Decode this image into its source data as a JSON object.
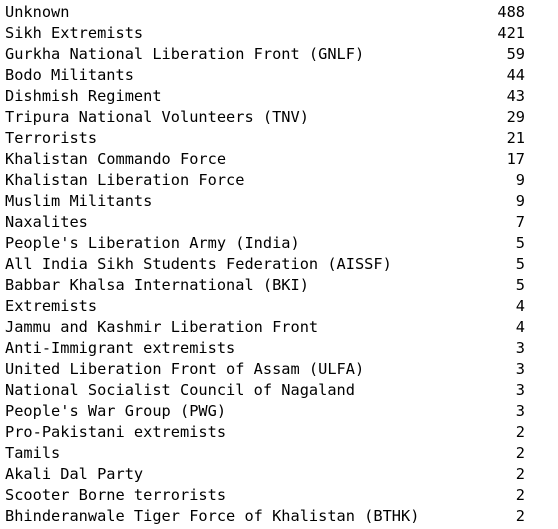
{
  "rows": [
    {
      "name": "Unknown",
      "count": "488"
    },
    {
      "name": "Sikh Extremists",
      "count": "421"
    },
    {
      "name": "Gurkha National Liberation Front (GNLF)",
      "count": "59"
    },
    {
      "name": "Bodo Militants",
      "count": "44"
    },
    {
      "name": "Dishmish Regiment",
      "count": "43"
    },
    {
      "name": "Tripura National Volunteers (TNV)",
      "count": "29"
    },
    {
      "name": "Terrorists",
      "count": "21"
    },
    {
      "name": "Khalistan Commando Force",
      "count": "17"
    },
    {
      "name": "Khalistan Liberation Force",
      "count": "9"
    },
    {
      "name": "Muslim Militants",
      "count": "9"
    },
    {
      "name": "Naxalites",
      "count": "7"
    },
    {
      "name": "People's Liberation Army (India)",
      "count": "5"
    },
    {
      "name": "All India Sikh Students Federation (AISSF)",
      "count": "5"
    },
    {
      "name": "Babbar Khalsa International (BKI)",
      "count": "5"
    },
    {
      "name": "Extremists",
      "count": "4"
    },
    {
      "name": "Jammu and Kashmir Liberation Front",
      "count": "4"
    },
    {
      "name": "Anti-Immigrant extremists",
      "count": "3"
    },
    {
      "name": "United Liberation Front of Assam (ULFA)",
      "count": "3"
    },
    {
      "name": "National Socialist Council of Nagaland",
      "count": "3"
    },
    {
      "name": "People's War Group (PWG)",
      "count": "3"
    },
    {
      "name": "Pro-Pakistani extremists",
      "count": "2"
    },
    {
      "name": "Tamils",
      "count": "2"
    },
    {
      "name": "Akali Dal Party",
      "count": "2"
    },
    {
      "name": "Scooter Borne terrorists",
      "count": "2"
    },
    {
      "name": "Bhinderanwale Tiger Force of Khalistan (BTHK)",
      "count": "2"
    }
  ]
}
